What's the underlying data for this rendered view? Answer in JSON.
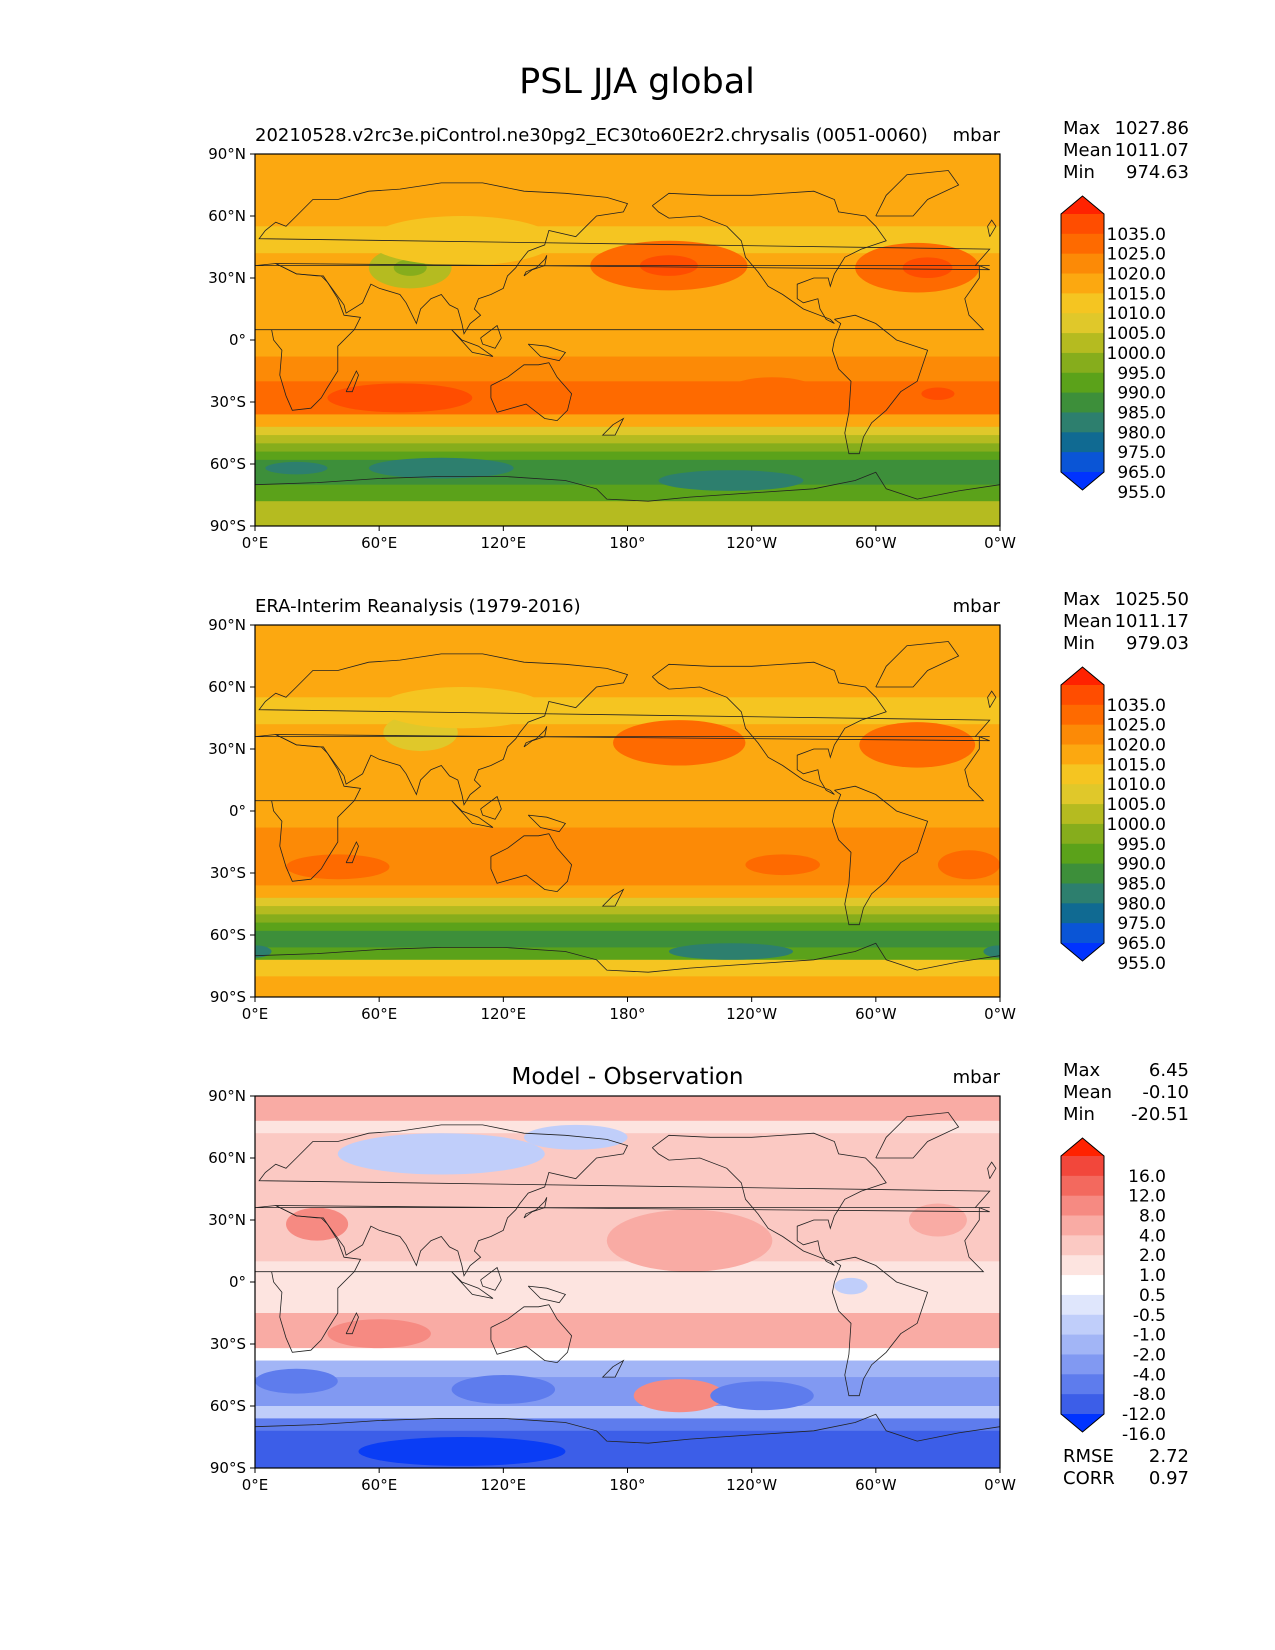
{
  "figure": {
    "title": "PSL JJA global"
  },
  "chart_data": [
    {
      "type": "heatmap",
      "title": "",
      "left_title": "20210528.v2rc3e.piControl.ne30pg2_EC30to60E2r2.chrysalis (0051-0060)",
      "units": "mbar",
      "xlabel": "",
      "ylabel": "",
      "xticks": [
        "0°E",
        "60°E",
        "120°E",
        "180°",
        "120°W",
        "60°W",
        "0°W"
      ],
      "yticks": [
        "90°N",
        "60°N",
        "30°N",
        "0°",
        "30°S",
        "60°S",
        "90°S"
      ],
      "stats": {
        "labels": [
          "Max",
          "Mean",
          "Min"
        ],
        "values": [
          "1027.86",
          "1011.07",
          "974.63"
        ]
      },
      "colorbar": {
        "levels": [
          "1035.0",
          "1025.0",
          "1020.0",
          "1015.0",
          "1010.0",
          "1005.0",
          "1000.0",
          "995.0",
          "990.0",
          "985.0",
          "980.0",
          "975.0",
          "965.0",
          "955.0"
        ],
        "colors": [
          "#ff2200",
          "#ff4d00",
          "#fe6a00",
          "#fc8a06",
          "#fca810",
          "#f5c521",
          "#e0c82a",
          "#b5bb20",
          "#86ad1c",
          "#5ba21a",
          "#3d8f3a",
          "#2d7f6e",
          "#106a92",
          "#0a55d6",
          "#0033ff"
        ]
      },
      "zones": [
        {
          "lat": [
            90,
            55
          ],
          "color": "#fca810"
        },
        {
          "lat": [
            55,
            42
          ],
          "color": "#f5c521"
        },
        {
          "lat": [
            42,
            18
          ],
          "color": "#fca810"
        },
        {
          "lat": [
            18,
            -8
          ],
          "color": "#fca810"
        },
        {
          "lat": [
            -8,
            -20
          ],
          "color": "#fc8a06"
        },
        {
          "lat": [
            -20,
            -36
          ],
          "color": "#fe6a00"
        },
        {
          "lat": [
            -36,
            -42
          ],
          "color": "#fca810"
        },
        {
          "lat": [
            -42,
            -46
          ],
          "color": "#e0c82a"
        },
        {
          "lat": [
            -46,
            -50
          ],
          "color": "#b5bb20"
        },
        {
          "lat": [
            -50,
            -54
          ],
          "color": "#86ad1c"
        },
        {
          "lat": [
            -54,
            -58
          ],
          "color": "#5ba21a"
        },
        {
          "lat": [
            -58,
            -70
          ],
          "color": "#3d8f3a"
        },
        {
          "lat": [
            -70,
            -78
          ],
          "color": "#5ba21a"
        },
        {
          "lat": [
            -78,
            -90
          ],
          "color": "#b5bb20"
        }
      ],
      "blobs": [
        {
          "lon": 200,
          "lat": 36,
          "rlon": 38,
          "rlat": 12,
          "color": "#fe6a00"
        },
        {
          "lon": 200,
          "lat": 36,
          "rlon": 14,
          "rlat": 5,
          "color": "#ff4d00"
        },
        {
          "lon": 320,
          "lat": 35,
          "rlon": 30,
          "rlat": 12,
          "color": "#fe6a00"
        },
        {
          "lon": 325,
          "lat": 35,
          "rlon": 12,
          "rlat": 5,
          "color": "#ff4d00"
        },
        {
          "lon": 70,
          "lat": -28,
          "rlon": 35,
          "rlat": 7,
          "color": "#ff4d00"
        },
        {
          "lon": 250,
          "lat": -25,
          "rlon": 22,
          "rlat": 7,
          "color": "#fe6a00"
        },
        {
          "lon": 330,
          "lat": -26,
          "rlon": 8,
          "rlat": 3,
          "color": "#ff4d00"
        },
        {
          "lon": 75,
          "lat": 35,
          "rlon": 20,
          "rlat": 10,
          "color": "#b5bb20"
        },
        {
          "lon": 75,
          "lat": 35,
          "rlon": 8,
          "rlat": 4,
          "color": "#86ad1c"
        },
        {
          "lon": 100,
          "lat": 48,
          "rlon": 45,
          "rlat": 12,
          "color": "#f5c521"
        },
        {
          "lon": 90,
          "lat": -62,
          "rlon": 35,
          "rlat": 5,
          "color": "#2d7f6e"
        },
        {
          "lon": 230,
          "lat": -68,
          "rlon": 35,
          "rlat": 5,
          "color": "#2d7f6e"
        },
        {
          "lon": 20,
          "lat": -62,
          "rlon": 15,
          "rlat": 3,
          "color": "#2d7f6e"
        }
      ]
    },
    {
      "type": "heatmap",
      "title": "",
      "left_title": "ERA-Interim Reanalysis (1979-2016)",
      "units": "mbar",
      "xlabel": "",
      "ylabel": "",
      "xticks": [
        "0°E",
        "60°E",
        "120°E",
        "180°",
        "120°W",
        "60°W",
        "0°W"
      ],
      "yticks": [
        "90°N",
        "60°N",
        "30°N",
        "0°",
        "30°S",
        "60°S",
        "90°S"
      ],
      "stats": {
        "labels": [
          "Max",
          "Mean",
          "Min"
        ],
        "values": [
          "1025.50",
          "1011.17",
          "979.03"
        ]
      },
      "colorbar": {
        "levels": [
          "1035.0",
          "1025.0",
          "1020.0",
          "1015.0",
          "1010.0",
          "1005.0",
          "1000.0",
          "995.0",
          "990.0",
          "985.0",
          "980.0",
          "975.0",
          "965.0",
          "955.0"
        ],
        "colors": [
          "#ff2200",
          "#ff4d00",
          "#fe6a00",
          "#fc8a06",
          "#fca810",
          "#f5c521",
          "#e0c82a",
          "#b5bb20",
          "#86ad1c",
          "#5ba21a",
          "#3d8f3a",
          "#2d7f6e",
          "#106a92",
          "#0a55d6",
          "#0033ff"
        ]
      },
      "zones": [
        {
          "lat": [
            90,
            55
          ],
          "color": "#fca810"
        },
        {
          "lat": [
            55,
            42
          ],
          "color": "#f5c521"
        },
        {
          "lat": [
            42,
            18
          ],
          "color": "#fca810"
        },
        {
          "lat": [
            18,
            -8
          ],
          "color": "#fca810"
        },
        {
          "lat": [
            -8,
            -20
          ],
          "color": "#fc8a06"
        },
        {
          "lat": [
            -20,
            -36
          ],
          "color": "#fc8a06"
        },
        {
          "lat": [
            -36,
            -42
          ],
          "color": "#fca810"
        },
        {
          "lat": [
            -42,
            -46
          ],
          "color": "#e0c82a"
        },
        {
          "lat": [
            -46,
            -50
          ],
          "color": "#b5bb20"
        },
        {
          "lat": [
            -50,
            -54
          ],
          "color": "#86ad1c"
        },
        {
          "lat": [
            -54,
            -58
          ],
          "color": "#5ba21a"
        },
        {
          "lat": [
            -58,
            -66
          ],
          "color": "#3d8f3a"
        },
        {
          "lat": [
            -66,
            -72
          ],
          "color": "#5ba21a"
        },
        {
          "lat": [
            -72,
            -80
          ],
          "color": "#f5c521"
        },
        {
          "lat": [
            -80,
            -90
          ],
          "color": "#fca810"
        }
      ],
      "blobs": [
        {
          "lon": 205,
          "lat": 33,
          "rlon": 32,
          "rlat": 11,
          "color": "#fe6a00"
        },
        {
          "lon": 320,
          "lat": 32,
          "rlon": 28,
          "rlat": 11,
          "color": "#fe6a00"
        },
        {
          "lon": 40,
          "lat": -27,
          "rlon": 25,
          "rlat": 6,
          "color": "#fe6a00"
        },
        {
          "lon": 255,
          "lat": -26,
          "rlon": 18,
          "rlat": 5,
          "color": "#fe6a00"
        },
        {
          "lon": 345,
          "lat": -26,
          "rlon": 15,
          "rlat": 7,
          "color": "#fe6a00"
        },
        {
          "lon": 80,
          "lat": 38,
          "rlon": 18,
          "rlat": 9,
          "color": "#e0c82a"
        },
        {
          "lon": 100,
          "lat": 50,
          "rlon": 40,
          "rlat": 10,
          "color": "#f5c521"
        },
        {
          "lon": 230,
          "lat": -68,
          "rlon": 30,
          "rlat": 4,
          "color": "#2d7f6e"
        },
        {
          "lon": 0,
          "lat": -68,
          "rlon": 8,
          "rlat": 3,
          "color": "#2d7f6e"
        }
      ]
    },
    {
      "type": "heatmap",
      "title": "Model - Observation",
      "left_title": "",
      "units": "mbar",
      "xlabel": "",
      "ylabel": "",
      "xticks": [
        "0°E",
        "60°E",
        "120°E",
        "180°",
        "120°W",
        "60°W",
        "0°W"
      ],
      "yticks": [
        "90°N",
        "60°N",
        "30°N",
        "0°",
        "30°S",
        "60°S",
        "90°S"
      ],
      "stats": {
        "labels": [
          "Max",
          "Mean",
          "Min"
        ],
        "values": [
          "6.45",
          "-0.10",
          "-20.51"
        ]
      },
      "metrics": {
        "labels": [
          "RMSE",
          "CORR"
        ],
        "values": [
          "2.72",
          "0.97"
        ]
      },
      "colorbar": {
        "levels": [
          "16.0",
          "12.0",
          "8.0",
          "4.0",
          "2.0",
          "1.0",
          "0.5",
          "-0.5",
          "-1.0",
          "-2.0",
          "-4.0",
          "-8.0",
          "-12.0",
          "-16.0"
        ],
        "colors": [
          "#ff2200",
          "#f2473b",
          "#f3695e",
          "#f68a82",
          "#f9aba4",
          "#fbc9c3",
          "#fde4e0",
          "#ffffff",
          "#dfe6fc",
          "#c0cefa",
          "#a2b5f6",
          "#8199f2",
          "#5e7ced",
          "#3c5ee8",
          "#0033ff"
        ]
      },
      "zones": [
        {
          "lat": [
            90,
            78
          ],
          "color": "#f9aba4"
        },
        {
          "lat": [
            78,
            72
          ],
          "color": "#fde4e0"
        },
        {
          "lat": [
            72,
            50
          ],
          "color": "#fbc9c3"
        },
        {
          "lat": [
            50,
            10
          ],
          "color": "#fbc9c3"
        },
        {
          "lat": [
            10,
            -15
          ],
          "color": "#fde4e0"
        },
        {
          "lat": [
            -15,
            -32
          ],
          "color": "#f9aba4"
        },
        {
          "lat": [
            -32,
            -38
          ],
          "color": "#ffffff"
        },
        {
          "lat": [
            -38,
            -46
          ],
          "color": "#a2b5f6"
        },
        {
          "lat": [
            -46,
            -60
          ],
          "color": "#8199f2"
        },
        {
          "lat": [
            -60,
            -66
          ],
          "color": "#c0cefa"
        },
        {
          "lat": [
            -66,
            -72
          ],
          "color": "#5e7ced"
        },
        {
          "lat": [
            -72,
            -90
          ],
          "color": "#3c5ee8"
        }
      ],
      "blobs": [
        {
          "lon": 90,
          "lat": 62,
          "rlon": 50,
          "rlat": 10,
          "color": "#c0cefa"
        },
        {
          "lon": 155,
          "lat": 70,
          "rlon": 25,
          "rlat": 6,
          "color": "#c0cefa"
        },
        {
          "lon": 210,
          "lat": 20,
          "rlon": 40,
          "rlat": 15,
          "color": "#f9aba4"
        },
        {
          "lon": 30,
          "lat": 28,
          "rlon": 15,
          "rlat": 8,
          "color": "#f68a82"
        },
        {
          "lon": 330,
          "lat": 30,
          "rlon": 14,
          "rlat": 8,
          "color": "#f9aba4"
        },
        {
          "lon": 205,
          "lat": -55,
          "rlon": 22,
          "rlat": 8,
          "color": "#f68a82"
        },
        {
          "lon": 120,
          "lat": -52,
          "rlon": 25,
          "rlat": 7,
          "color": "#5e7ced"
        },
        {
          "lon": 245,
          "lat": -55,
          "rlon": 25,
          "rlat": 7,
          "color": "#5e7ced"
        },
        {
          "lon": 20,
          "lat": -48,
          "rlon": 20,
          "rlat": 6,
          "color": "#5e7ced"
        },
        {
          "lon": 100,
          "lat": -82,
          "rlon": 50,
          "rlat": 7,
          "color": "#0a3df5"
        },
        {
          "lon": 288,
          "lat": -2,
          "rlon": 8,
          "rlat": 4,
          "color": "#c0cefa"
        },
        {
          "lon": 60,
          "lat": -25,
          "rlon": 25,
          "rlat": 7,
          "color": "#f68a82"
        }
      ]
    }
  ]
}
